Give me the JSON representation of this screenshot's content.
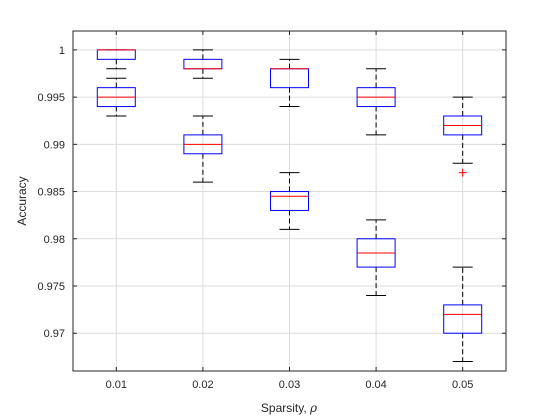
{
  "chart_data": {
    "type": "box",
    "title": "",
    "xlabel": "Sparsity, ",
    "xlabel_symbol": "ρ",
    "ylabel": "Accuracy",
    "categories": [
      "0.01",
      "0.02",
      "0.03",
      "0.04",
      "0.05"
    ],
    "ylim": [
      0.966,
      1.002
    ],
    "yticks": [
      0.97,
      0.975,
      0.98,
      0.985,
      0.99,
      0.995,
      1
    ],
    "ytick_labels": [
      "0.97",
      "0.975",
      "0.98",
      "0.985",
      "0.99",
      "0.995",
      "1"
    ],
    "grid": true,
    "colors": {
      "box": "#0000ff",
      "median": "#ff0000",
      "whisker": "#000000",
      "outlier": "#ff0000",
      "grid": "#dcdcdc",
      "axis": "#262626"
    },
    "boxes": [
      {
        "category": "0.01",
        "min": 0.998,
        "q1": 0.999,
        "median": 1.0,
        "q3": 1.0,
        "max": 1.0,
        "outliers": []
      },
      {
        "category": "0.01",
        "min": 0.993,
        "q1": 0.994,
        "median": 0.995,
        "q3": 0.996,
        "max": 0.997,
        "outliers": []
      },
      {
        "category": "0.02",
        "min": 0.997,
        "q1": 0.998,
        "median": 0.998,
        "q3": 0.999,
        "max": 1.0,
        "outliers": []
      },
      {
        "category": "0.02",
        "min": 0.986,
        "q1": 0.989,
        "median": 0.99,
        "q3": 0.991,
        "max": 0.993,
        "outliers": []
      },
      {
        "category": "0.03",
        "min": 0.994,
        "q1": 0.996,
        "median": 0.998,
        "q3": 0.998,
        "max": 0.999,
        "outliers": []
      },
      {
        "category": "0.03",
        "min": 0.981,
        "q1": 0.983,
        "median": 0.9845,
        "q3": 0.985,
        "max": 0.987,
        "outliers": []
      },
      {
        "category": "0.04",
        "min": 0.991,
        "q1": 0.994,
        "median": 0.995,
        "q3": 0.996,
        "max": 0.998,
        "outliers": []
      },
      {
        "category": "0.04",
        "min": 0.974,
        "q1": 0.977,
        "median": 0.9785,
        "q3": 0.98,
        "max": 0.982,
        "outliers": []
      },
      {
        "category": "0.05",
        "min": 0.988,
        "q1": 0.991,
        "median": 0.992,
        "q3": 0.993,
        "max": 0.995,
        "outliers": [
          0.987
        ]
      },
      {
        "category": "0.05",
        "min": 0.967,
        "q1": 0.97,
        "median": 0.972,
        "q3": 0.973,
        "max": 0.977,
        "outliers": []
      }
    ]
  }
}
